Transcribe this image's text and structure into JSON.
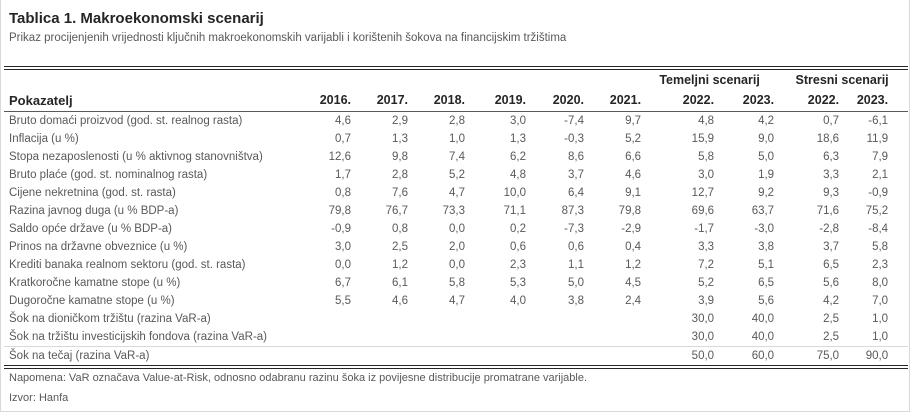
{
  "title": "Tablica 1. Makroekonomski scenarij",
  "subtitle": "Prikaz procijenjenih vrijednosti ključnih makroekonomskih varijabli i korištenih šokova na financijskim tržištima",
  "table": {
    "group_headers": [
      {
        "label": "",
        "span": 7,
        "name": "group-header-spacer"
      },
      {
        "label": "Temeljni scenarij",
        "span": 2,
        "name": "group-header-temeljni"
      },
      {
        "label": "Stresni scenarij",
        "span": 2,
        "name": "group-header-stresni"
      }
    ],
    "label_header": "Pokazatelj",
    "year_headers": [
      "2016.",
      "2017.",
      "2018.",
      "2019.",
      "2020.",
      "2021.",
      "2022.",
      "2023.",
      "2022.",
      "2023."
    ],
    "rows": [
      {
        "label": "Bruto domaći proizvod (god. st. realnog rasta)",
        "values": [
          "4,6",
          "2,9",
          "2,8",
          "3,0",
          "-7,4",
          "9,7",
          "4,8",
          "4,2",
          "0,7",
          "-6,1"
        ]
      },
      {
        "label": "Inflacija (u %)",
        "values": [
          "0,7",
          "1,3",
          "1,0",
          "1,3",
          "-0,3",
          "5,2",
          "15,9",
          "9,0",
          "18,6",
          "11,9"
        ]
      },
      {
        "label": "Stopa nezaposlenosti (u % aktivnog stanovništva)",
        "values": [
          "12,6",
          "9,8",
          "7,4",
          "6,2",
          "8,6",
          "6,6",
          "5,8",
          "5,0",
          "6,3",
          "7,9"
        ]
      },
      {
        "label": "Bruto plaće (god. st. nominalnog rasta)",
        "values": [
          "1,7",
          "2,8",
          "5,2",
          "4,8",
          "3,7",
          "4,6",
          "3,0",
          "1,9",
          "3,3",
          "2,1"
        ]
      },
      {
        "label": "Cijene nekretnina (god. st. rasta)",
        "values": [
          "0,8",
          "7,6",
          "4,7",
          "10,0",
          "6,4",
          "9,1",
          "12,7",
          "9,2",
          "9,3",
          "-0,9"
        ]
      },
      {
        "label": "Razina javnog duga (u % BDP-a)",
        "values": [
          "79,8",
          "76,7",
          "73,3",
          "71,1",
          "87,3",
          "79,8",
          "69,6",
          "63,7",
          "71,6",
          "75,2"
        ]
      },
      {
        "label": "Saldo opće države (u % BDP-a)",
        "values": [
          "-0,9",
          "0,8",
          "0,0",
          "0,2",
          "-7,3",
          "-2,9",
          "-1,7",
          "-3,0",
          "-2,8",
          "-8,4"
        ]
      },
      {
        "label": "Prinos na državne obveznice (u %)",
        "values": [
          "3,0",
          "2,5",
          "2,0",
          "0,6",
          "0,6",
          "0,4",
          "3,3",
          "3,8",
          "3,7",
          "5,8"
        ]
      },
      {
        "label": "Krediti banaka realnom sektoru (god. st. rasta)",
        "values": [
          "0,0",
          "1,2",
          "0,0",
          "2,3",
          "1,1",
          "1,2",
          "7,2",
          "5,1",
          "6,5",
          "2,3"
        ]
      },
      {
        "label": "Kratkoročne kamatne stope (u %)",
        "values": [
          "6,7",
          "6,1",
          "5,8",
          "5,3",
          "5,0",
          "4,5",
          "5,2",
          "6,5",
          "5,6",
          "8,0"
        ]
      },
      {
        "label": "Dugoročne kamatne stope (u %)",
        "values": [
          "5,5",
          "4,6",
          "4,7",
          "4,0",
          "3,8",
          "2,4",
          "3,9",
          "5,6",
          "4,2",
          "7,0"
        ]
      },
      {
        "label": "Šok na dioničkom tržištu (razina VaR-a)",
        "values": [
          "",
          "",
          "",
          "",
          "",
          "",
          "30,0",
          "40,0",
          "2,5",
          "1,0"
        ]
      },
      {
        "label": "Šok na tržištu investicijskih fondova (razina VaR-a)",
        "values": [
          "",
          "",
          "",
          "",
          "",
          "",
          "30,0",
          "40,0",
          "2,5",
          "1,0"
        ]
      },
      {
        "label": "Šok na tečaj (razina VaR-a)",
        "values": [
          "",
          "",
          "",
          "",
          "",
          "",
          "50,0",
          "60,0",
          "75,0",
          "90,0"
        ],
        "separator_top": true
      }
    ]
  },
  "footer": {
    "note": "Napomena: VaR označava Value-at-Risk, odnosno odabranu razinu šoka iz povijesne distribucije promatrane varijable.",
    "source": "Izvor: Hanfa"
  }
}
